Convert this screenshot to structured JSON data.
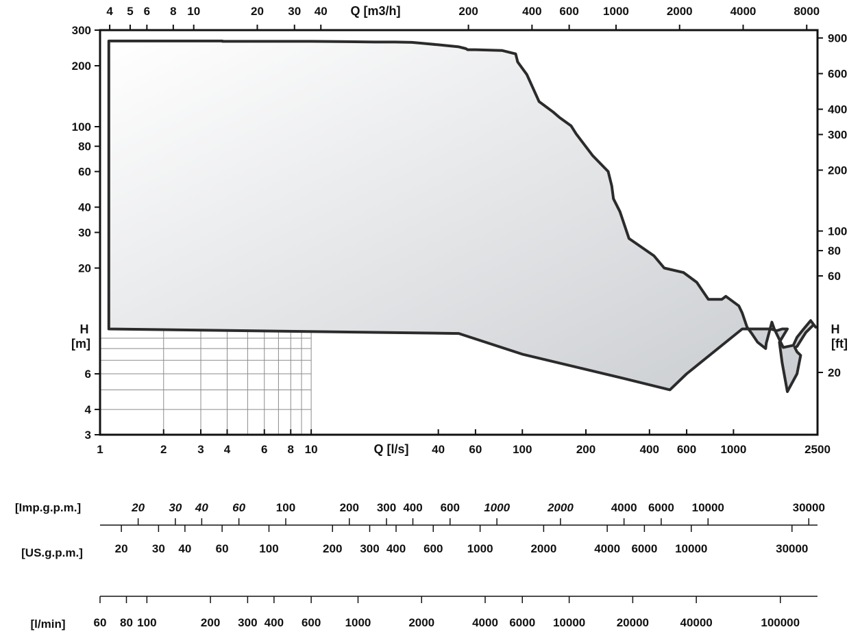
{
  "chart_data": {
    "type": "area",
    "title": "",
    "x_axis": {
      "label": "Q [l/s]",
      "scale": "log",
      "range": [
        1,
        2500
      ],
      "tick_labels": [
        "1",
        "2",
        "3",
        "4",
        "6",
        "8",
        "10",
        "40",
        "60",
        "100",
        "200",
        "400",
        "600",
        "1000",
        "2500"
      ],
      "tick_values": [
        1,
        2,
        3,
        4,
        6,
        8,
        10,
        40,
        60,
        100,
        200,
        400,
        600,
        1000,
        2500
      ]
    },
    "x_axis_top": {
      "label": "Q [m3/h]",
      "scale": "log",
      "tick_labels": [
        "4",
        "5",
        "6",
        "8",
        "10",
        "20",
        "30",
        "40",
        "200",
        "400",
        "600",
        "1000",
        "2000",
        "4000",
        "8000"
      ],
      "tick_values": [
        4,
        5,
        6,
        8,
        10,
        20,
        30,
        40,
        200,
        400,
        600,
        1000,
        2000,
        4000,
        8000
      ]
    },
    "y_axis": {
      "label": "H",
      "label_unit": "[m]",
      "scale": "log",
      "range": [
        3,
        300
      ],
      "tick_labels": [
        "300",
        "200",
        "100",
        "80",
        "60",
        "40",
        "30",
        "20",
        "6",
        "4",
        "3"
      ],
      "tick_values": [
        300,
        200,
        100,
        80,
        60,
        40,
        30,
        20,
        6,
        4,
        3
      ]
    },
    "y_axis_right": {
      "label": "H",
      "label_unit": "[ft]",
      "scale": "log",
      "tick_labels": [
        "900",
        "600",
        "400",
        "300",
        "200",
        "100",
        "80",
        "60",
        "20"
      ],
      "tick_values": [
        900,
        600,
        400,
        300,
        200,
        100,
        80,
        60,
        20
      ]
    },
    "envelope": {
      "x": [
        1.1,
        1.1,
        3.8,
        3.8,
        10,
        15,
        20,
        25,
        30,
        34,
        40,
        50,
        54,
        55,
        60,
        80,
        93,
        95,
        105,
        120,
        140,
        150,
        170,
        180,
        215,
        255,
        265,
        270,
        290,
        320,
        420,
        470,
        580,
        670,
        760,
        880,
        920,
        1060,
        1100,
        1160,
        1220,
        1300,
        1420,
        1430,
        1520,
        1560,
        1720,
        1920,
        2000,
        2150,
        2320,
        2450,
        2400,
        2200,
        2000,
        1950,
        2000,
        2080,
        2000,
        1800,
        1700,
        1650,
        1800,
        1700,
        1600,
        1500,
        1350,
        1250,
        1100,
        600,
        500,
        300,
        100,
        50,
        1.1
      ],
      "y": [
        10,
        265,
        265,
        264,
        264,
        263,
        262,
        262,
        261,
        258,
        254,
        248,
        243,
        240,
        240,
        238,
        229,
        209,
        181,
        133,
        118,
        111,
        101,
        92,
        72,
        60,
        51,
        44,
        38,
        28,
        23,
        20,
        19,
        17,
        14,
        14,
        14.5,
        13,
        12,
        10.2,
        9.5,
        8.6,
        8,
        8.5,
        10.8,
        10,
        8.1,
        8.3,
        9.1,
        10,
        11,
        10.2,
        10.5,
        9.6,
        8.2,
        8.1,
        7.7,
        7.4,
        6,
        4.9,
        6.8,
        8.6,
        10,
        10,
        9.8,
        10,
        10,
        10,
        10,
        6,
        5,
        5.7,
        7.5,
        9.5,
        10
      ]
    },
    "flow_scales": [
      {
        "name": "[Imp.g.p.m.]",
        "tick_labels": [
          "20",
          "30",
          "40",
          "60",
          "100",
          "200",
          "300",
          "400",
          "600",
          "1000",
          "2000",
          "4000",
          "6000",
          "10000",
          "30000"
        ],
        "tick_values": [
          20,
          30,
          40,
          60,
          100,
          200,
          300,
          400,
          600,
          1000,
          2000,
          4000,
          6000,
          10000,
          30000
        ],
        "italic_labels": [
          "20",
          "30",
          "40",
          "60",
          "1000",
          "2000"
        ]
      },
      {
        "name": "[US.g.p.m.]",
        "tick_labels": [
          "20",
          "30",
          "40",
          "60",
          "100",
          "200",
          "300",
          "400",
          "600",
          "1000",
          "2000",
          "4000",
          "6000",
          "10000",
          "30000"
        ],
        "tick_values": [
          20,
          30,
          40,
          60,
          100,
          200,
          300,
          400,
          600,
          1000,
          2000,
          4000,
          6000,
          10000,
          30000
        ],
        "italic_labels": []
      },
      {
        "name": "[l/min]",
        "tick_labels": [
          "60",
          "80",
          "100",
          "200",
          "300",
          "400",
          "600",
          "1000",
          "2000",
          "4000",
          "6000",
          "10000",
          "20000",
          "40000",
          "100000"
        ],
        "tick_values": [
          60,
          80,
          100,
          200,
          300,
          400,
          600,
          1000,
          2000,
          4000,
          6000,
          10000,
          20000,
          40000,
          100000
        ],
        "italic_labels": []
      }
    ],
    "grid": true,
    "colors": {
      "outline": "#2b2b2b",
      "fill_light": "#ffffff",
      "fill_dark": "#c9ccd0",
      "grid": "#8a8a8a"
    }
  }
}
